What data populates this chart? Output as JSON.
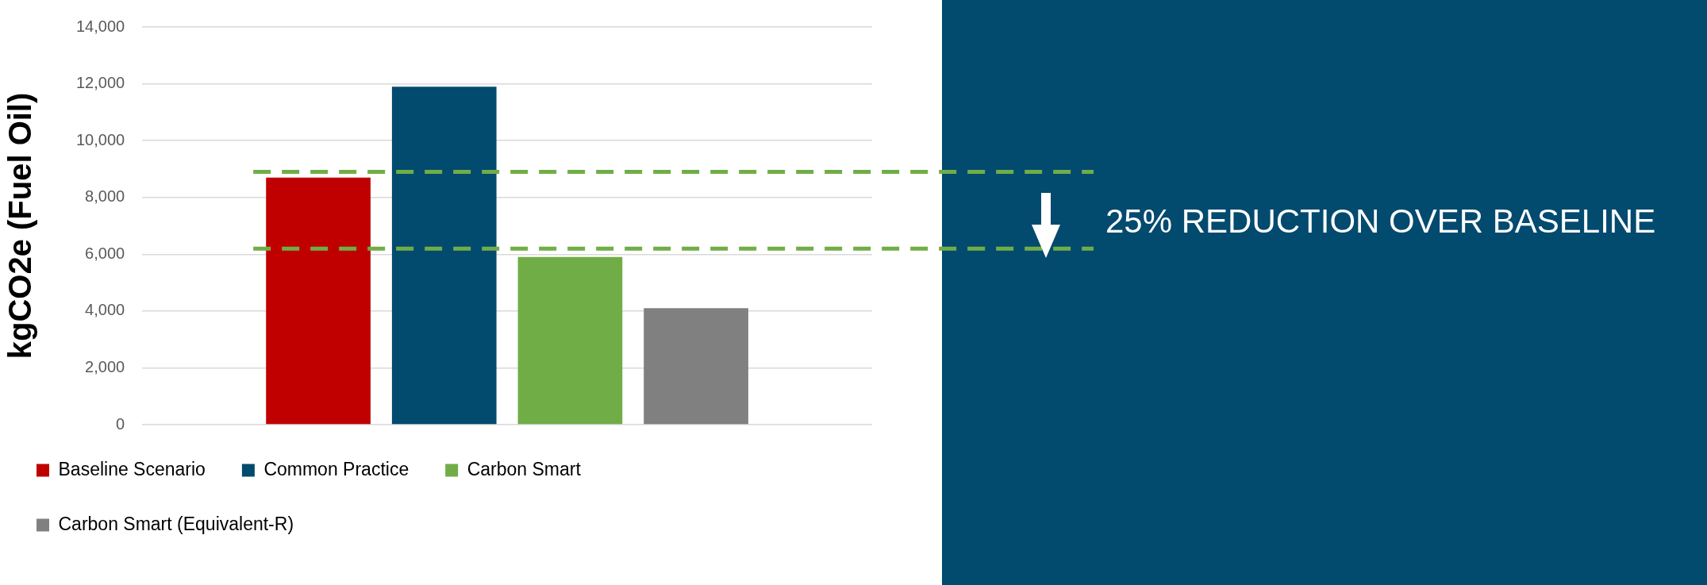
{
  "chart_data": {
    "type": "bar",
    "ylabel": "kgCO2e (Fuel Oil)",
    "categories": [
      null
    ],
    "series": [
      {
        "name": "Baseline Scenario",
        "color": "#c00000",
        "values": [
          8700
        ]
      },
      {
        "name": "Common Practice",
        "color": "#034a6f",
        "values": [
          11900
        ]
      },
      {
        "name": "Carbon Smart",
        "color": "#70ad47",
        "values": [
          5900
        ]
      },
      {
        "name": "Carbon Smart (Equivalent-R)",
        "color": "#808080",
        "values": [
          4100
        ]
      }
    ],
    "ylim": [
      0,
      14000
    ],
    "yticks": [
      {
        "value": 0,
        "label": "0"
      },
      {
        "value": 2000,
        "label": "2,000"
      },
      {
        "value": 4000,
        "label": "4,000"
      },
      {
        "value": 6000,
        "label": "6,000"
      },
      {
        "value": 8000,
        "label": "8,000"
      },
      {
        "value": 10000,
        "label": "10,000"
      },
      {
        "value": 12000,
        "label": "12,000"
      },
      {
        "value": 14000,
        "label": "14,000"
      }
    ],
    "grid": "y",
    "legend": "bottom",
    "ref_lines": [
      {
        "axis": "y",
        "value": 8900,
        "color": "#70ad47",
        "line_style": "dashed"
      },
      {
        "axis": "y",
        "value": 6200,
        "color": "#70ad47",
        "line_style": "dashed"
      }
    ],
    "annotations": [
      "25% REDUCTION OVER BASELINE"
    ]
  }
}
